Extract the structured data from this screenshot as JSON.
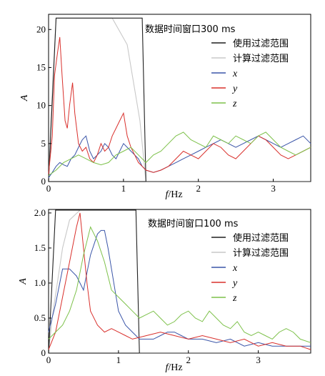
{
  "chart_data": [
    {
      "type": "line",
      "title": "数据时间窗口300 ms",
      "xlabel": "f/Hz",
      "ylabel": "A",
      "xlim": [
        0,
        3.5
      ],
      "ylim": [
        0,
        22
      ],
      "xticks": [
        0,
        1,
        2,
        3
      ],
      "yticks": [
        0,
        5,
        10,
        15,
        20
      ],
      "legend_position": "top-right",
      "filters": [
        {
          "name": "使用过滤范围",
          "color": "#1f1f1f",
          "x": [
            0.0,
            0.1,
            1.25,
            1.3,
            3.5
          ],
          "y": [
            0,
            21.5,
            21.5,
            0,
            0
          ]
        },
        {
          "name": "计算过滤范围",
          "color": "#c8c8c8",
          "x": [
            0.0,
            0.03,
            0.1,
            0.85,
            1.05,
            1.22,
            1.3
          ],
          "y": [
            0,
            8,
            21.5,
            21.5,
            18,
            8,
            0
          ]
        }
      ],
      "series": [
        {
          "name": "x",
          "color": "#3a55a8",
          "x": [
            0,
            0.05,
            0.1,
            0.15,
            0.2,
            0.25,
            0.3,
            0.35,
            0.4,
            0.45,
            0.5,
            0.55,
            0.6,
            0.65,
            0.7,
            0.75,
            0.8,
            0.85,
            0.9,
            0.95,
            1.0,
            1.05,
            1.1,
            1.15,
            1.2,
            1.25,
            1.3,
            1.4,
            1.5,
            1.6,
            1.7,
            1.8,
            1.9,
            2.0,
            2.1,
            2.2,
            2.3,
            2.4,
            2.5,
            2.6,
            2.7,
            2.8,
            2.9,
            3.0,
            3.1,
            3.2,
            3.3,
            3.4,
            3.5
          ],
          "y": [
            0.5,
            1.2,
            2.0,
            2.5,
            2.2,
            2.0,
            3.0,
            3.5,
            4.5,
            5.5,
            6.0,
            4.0,
            3.0,
            3.5,
            4.0,
            5.0,
            4.5,
            3.5,
            3.0,
            4.0,
            5.0,
            4.5,
            4.0,
            3.5,
            3.0,
            2.0,
            1.5,
            1.2,
            1.5,
            2.0,
            2.5,
            3.0,
            3.5,
            4.0,
            4.5,
            5.0,
            5.5,
            5.0,
            4.5,
            5.0,
            5.5,
            6.0,
            5.5,
            5.0,
            4.5,
            5.0,
            5.5,
            6.0,
            5.0
          ]
        },
        {
          "name": "y",
          "color": "#d9302c",
          "x": [
            0,
            0.05,
            0.08,
            0.12,
            0.15,
            0.18,
            0.22,
            0.25,
            0.28,
            0.32,
            0.35,
            0.4,
            0.45,
            0.5,
            0.55,
            0.6,
            0.65,
            0.7,
            0.75,
            0.8,
            0.85,
            0.9,
            0.95,
            1.0,
            1.05,
            1.1,
            1.15,
            1.2,
            1.25,
            1.3,
            1.4,
            1.5,
            1.6,
            1.7,
            1.8,
            1.9,
            2.0,
            2.1,
            2.2,
            2.3,
            2.4,
            2.5,
            2.6,
            2.7,
            2.8,
            2.9,
            3.0,
            3.1,
            3.2,
            3.3,
            3.4,
            3.5
          ],
          "y": [
            1.0,
            6.0,
            14.0,
            17.0,
            19.0,
            14.0,
            8.0,
            7.0,
            10.0,
            13.0,
            9.0,
            5.0,
            4.0,
            4.5,
            3.0,
            2.5,
            3.5,
            5.0,
            4.0,
            4.5,
            6.0,
            7.0,
            8.0,
            9.0,
            6.0,
            4.5,
            3.5,
            2.5,
            2.0,
            1.5,
            1.2,
            1.5,
            2.0,
            3.0,
            4.0,
            3.5,
            3.0,
            4.0,
            5.0,
            4.5,
            3.5,
            3.0,
            4.0,
            5.0,
            6.0,
            5.5,
            4.5,
            3.5,
            3.0,
            3.5,
            4.0,
            4.5
          ]
        },
        {
          "name": "z",
          "color": "#7dc14a",
          "x": [
            0,
            0.1,
            0.2,
            0.3,
            0.4,
            0.5,
            0.6,
            0.7,
            0.8,
            0.9,
            1.0,
            1.1,
            1.2,
            1.3,
            1.4,
            1.5,
            1.6,
            1.7,
            1.8,
            1.9,
            2.0,
            2.1,
            2.2,
            2.3,
            2.4,
            2.5,
            2.6,
            2.7,
            2.8,
            2.9,
            3.0,
            3.1,
            3.2,
            3.3,
            3.4,
            3.5
          ],
          "y": [
            0.8,
            1.5,
            2.5,
            3.0,
            3.5,
            3.0,
            2.5,
            2.2,
            2.5,
            3.5,
            4.0,
            4.5,
            3.5,
            2.5,
            3.5,
            4.0,
            5.0,
            6.0,
            6.5,
            5.5,
            5.0,
            4.5,
            6.0,
            5.5,
            5.0,
            6.0,
            5.5,
            5.0,
            6.0,
            6.5,
            5.5,
            4.5,
            4.0,
            3.5,
            4.0,
            4.5
          ]
        }
      ]
    },
    {
      "type": "line",
      "title": "数据时间窗口100 ms",
      "xlabel": "f/Hz",
      "ylabel": "A",
      "xlim": [
        0,
        3.75
      ],
      "ylim": [
        0,
        2.05
      ],
      "xticks": [
        0,
        1,
        2,
        3
      ],
      "yticks": [
        0,
        0.5,
        1.0,
        1.5,
        2.0
      ],
      "ytick_labels": [
        "0",
        "0.5",
        "1.0",
        "1.5",
        "2.0"
      ],
      "legend_position": "top-right",
      "filters": [
        {
          "name": "使用过滤范围",
          "color": "#1f1f1f",
          "x": [
            0.0,
            0.1,
            1.25,
            1.3,
            3.75
          ],
          "y": [
            0,
            2.04,
            2.04,
            0,
            0
          ]
        },
        {
          "name": "计算过滤范围",
          "color": "#c8c8c8",
          "x": [
            0.0,
            0.05,
            0.2,
            0.3,
            0.45
          ],
          "y": [
            0,
            0.5,
            1.5,
            1.9,
            2.04
          ]
        }
      ],
      "series": [
        {
          "name": "x",
          "color": "#3a55a8",
          "x": [
            0,
            0.1,
            0.2,
            0.3,
            0.4,
            0.5,
            0.6,
            0.7,
            0.75,
            0.8,
            0.85,
            0.9,
            0.95,
            1.0,
            1.1,
            1.2,
            1.3,
            1.4,
            1.5,
            1.6,
            1.7,
            1.8,
            1.9,
            2.0,
            2.2,
            2.4,
            2.6,
            2.8,
            3.0,
            3.2,
            3.4,
            3.6,
            3.75
          ],
          "y": [
            0.3,
            0.7,
            1.2,
            1.2,
            1.1,
            0.9,
            1.4,
            1.7,
            1.75,
            1.75,
            1.5,
            1.2,
            0.9,
            0.6,
            0.4,
            0.3,
            0.2,
            0.2,
            0.2,
            0.25,
            0.3,
            0.3,
            0.25,
            0.2,
            0.2,
            0.15,
            0.2,
            0.1,
            0.15,
            0.1,
            0.1,
            0.1,
            0.1
          ]
        },
        {
          "name": "y",
          "color": "#d9302c",
          "x": [
            0,
            0.1,
            0.2,
            0.3,
            0.4,
            0.45,
            0.5,
            0.55,
            0.6,
            0.7,
            0.8,
            0.9,
            1.0,
            1.1,
            1.2,
            1.4,
            1.6,
            1.8,
            2.0,
            2.2,
            2.4,
            2.6,
            2.8,
            3.0,
            3.2,
            3.4,
            3.6,
            3.75
          ],
          "y": [
            0.05,
            0.3,
            0.8,
            1.3,
            1.8,
            2.0,
            1.5,
            1.0,
            0.6,
            0.4,
            0.3,
            0.35,
            0.3,
            0.25,
            0.2,
            0.25,
            0.3,
            0.25,
            0.2,
            0.25,
            0.2,
            0.15,
            0.2,
            0.1,
            0.15,
            0.1,
            0.1,
            0.05
          ]
        },
        {
          "name": "z",
          "color": "#7dc14a",
          "x": [
            0,
            0.1,
            0.2,
            0.3,
            0.4,
            0.5,
            0.6,
            0.65,
            0.7,
            0.8,
            0.9,
            1.0,
            1.1,
            1.2,
            1.3,
            1.4,
            1.5,
            1.6,
            1.7,
            1.8,
            1.9,
            2.0,
            2.1,
            2.2,
            2.3,
            2.4,
            2.5,
            2.6,
            2.7,
            2.8,
            2.9,
            3.0,
            3.1,
            3.2,
            3.3,
            3.4,
            3.5,
            3.6,
            3.75
          ],
          "y": [
            0.2,
            0.3,
            0.4,
            0.6,
            0.9,
            1.4,
            1.8,
            1.7,
            1.6,
            1.3,
            0.9,
            0.8,
            0.7,
            0.6,
            0.5,
            0.55,
            0.6,
            0.5,
            0.4,
            0.45,
            0.55,
            0.6,
            0.5,
            0.45,
            0.6,
            0.5,
            0.4,
            0.35,
            0.45,
            0.3,
            0.25,
            0.3,
            0.25,
            0.2,
            0.3,
            0.35,
            0.3,
            0.2,
            0.15
          ]
        }
      ]
    }
  ]
}
